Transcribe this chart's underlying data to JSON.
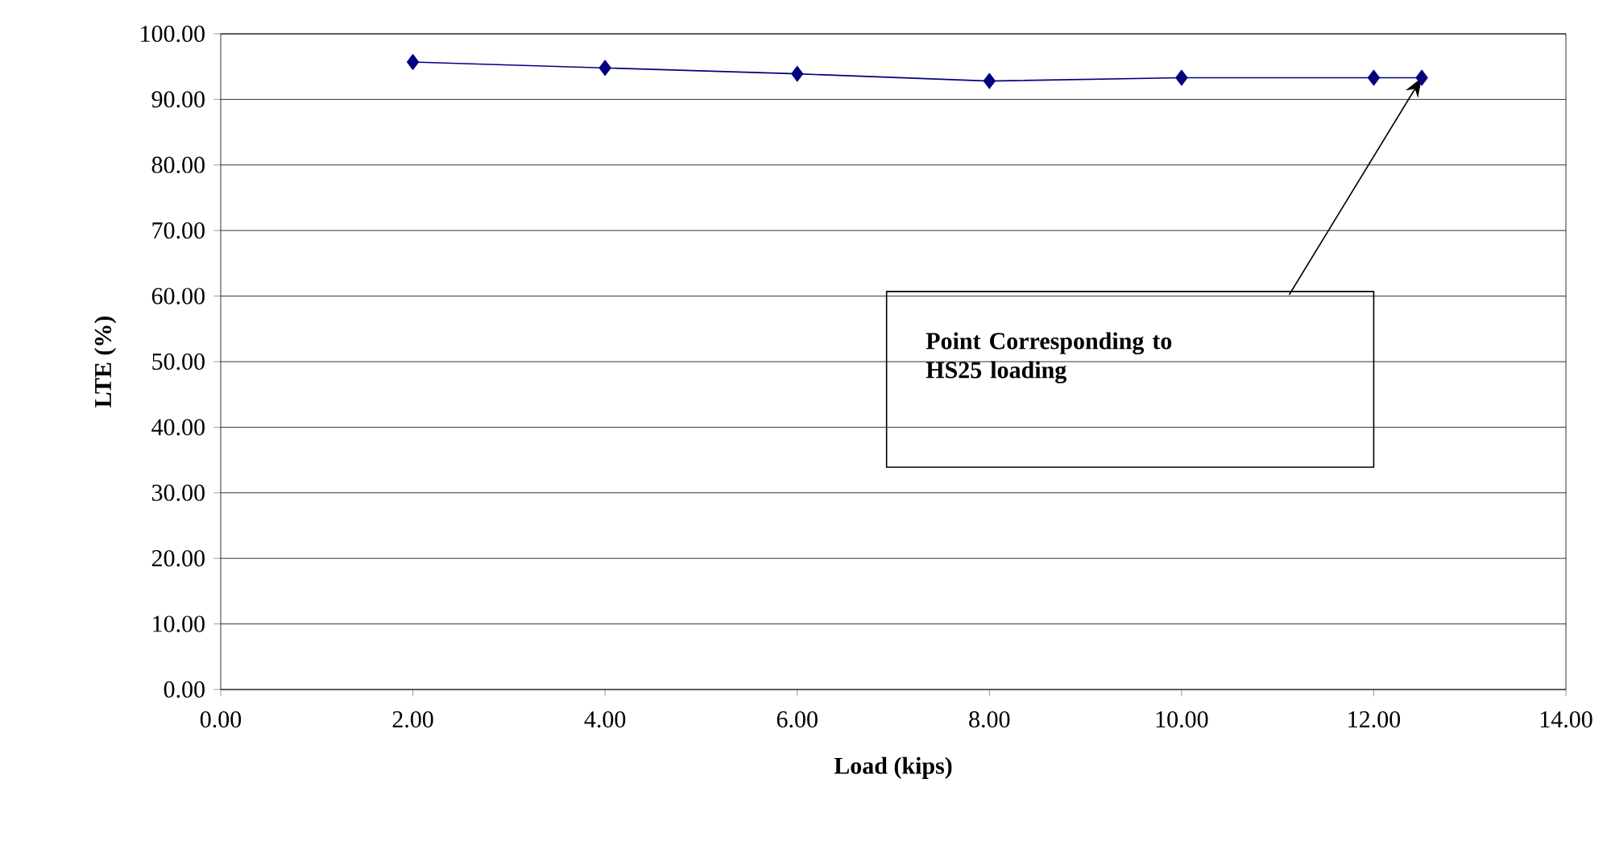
{
  "chart_data": {
    "type": "line",
    "xlabel": "Load (kips)",
    "ylabel": "LTE (%)",
    "x": [
      2,
      4,
      6,
      8,
      10,
      12,
      12.5
    ],
    "series": [
      {
        "color": "#000080",
        "values": [
          95.7,
          94.8,
          93.9,
          92.8,
          93.3,
          93.3,
          93.3
        ]
      }
    ],
    "xlim": [
      0,
      14
    ],
    "ylim": [
      0,
      100
    ],
    "xticks": [
      {
        "value": 0,
        "label": "0.00"
      },
      {
        "value": 2,
        "label": "2.00"
      },
      {
        "value": 4,
        "label": "4.00"
      },
      {
        "value": 6,
        "label": "6.00"
      },
      {
        "value": 8,
        "label": "8.00"
      },
      {
        "value": 10,
        "label": "10.00"
      },
      {
        "value": 12,
        "label": "12.00"
      },
      {
        "value": 14,
        "label": "14.00"
      }
    ],
    "yticks": [
      {
        "value": 0,
        "label": "0.00"
      },
      {
        "value": 10,
        "label": "10.00"
      },
      {
        "value": 20,
        "label": "20.00"
      },
      {
        "value": 30,
        "label": "30.00"
      },
      {
        "value": 40,
        "label": "40.00"
      },
      {
        "value": 50,
        "label": "50.00"
      },
      {
        "value": 60,
        "label": "60.00"
      },
      {
        "value": 70,
        "label": "70.00"
      },
      {
        "value": 80,
        "label": "80.00"
      },
      {
        "value": 90,
        "label": "90.00"
      },
      {
        "value": 100,
        "label": "100.00"
      }
    ],
    "grid": "y",
    "marker": "diamond",
    "line_style": "solid",
    "annotations": [
      "Point Corresponding to HS25 loading"
    ]
  }
}
